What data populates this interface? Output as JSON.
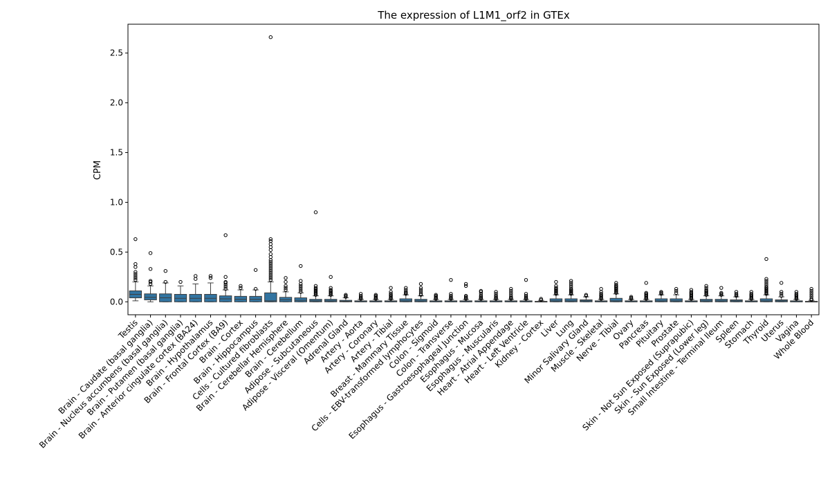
{
  "chart_data": {
    "type": "box",
    "title": "The expression of L1M1_orf2 in GTEx",
    "xlabel": "",
    "ylabel": "CPM",
    "ylim": [
      -0.13,
      2.79
    ],
    "yticks": [
      0.0,
      0.5,
      1.0,
      1.5,
      2.0,
      2.5
    ],
    "grid": false,
    "box_color": "#3274a1",
    "categories": [
      {
        "name": "Testis",
        "q1": 0.04,
        "median": 0.075,
        "q3": 0.11,
        "wlo": 0.01,
        "whi": 0.2,
        "outliers": [
          0.22,
          0.24,
          0.26,
          0.28,
          0.3,
          0.35,
          0.38,
          0.63
        ]
      },
      {
        "name": "Brain - Caudate (basal ganglia)",
        "q1": 0.02,
        "median": 0.045,
        "q3": 0.08,
        "wlo": 0.0,
        "whi": 0.16,
        "outliers": [
          0.18,
          0.2,
          0.21,
          0.33,
          0.49
        ]
      },
      {
        "name": "Brain - Nucleus accumbens (basal ganglia)",
        "q1": 0.0,
        "median": 0.04,
        "q3": 0.08,
        "wlo": 0.0,
        "whi": 0.19,
        "outliers": [
          0.2,
          0.31
        ]
      },
      {
        "name": "Brain - Putamen (basal ganglia)",
        "q1": 0.0,
        "median": 0.035,
        "q3": 0.075,
        "wlo": 0.0,
        "whi": 0.16,
        "outliers": [
          0.2
        ]
      },
      {
        "name": "Brain - Anterior cingulate cortex (BA24)",
        "q1": 0.0,
        "median": 0.035,
        "q3": 0.075,
        "wlo": 0.0,
        "whi": 0.18,
        "outliers": [
          0.23,
          0.26
        ]
      },
      {
        "name": "Brain - Hypothalamus",
        "q1": 0.0,
        "median": 0.035,
        "q3": 0.075,
        "wlo": 0.0,
        "whi": 0.19,
        "outliers": [
          0.24,
          0.26
        ]
      },
      {
        "name": "Brain - Frontal Cortex (BA9)",
        "q1": 0.0,
        "median": 0.03,
        "q3": 0.06,
        "wlo": 0.0,
        "whi": 0.12,
        "outliers": [
          0.13,
          0.15,
          0.17,
          0.19,
          0.2,
          0.25,
          0.67
        ]
      },
      {
        "name": "Brain - Cortex",
        "q1": 0.0,
        "median": 0.025,
        "q3": 0.055,
        "wlo": 0.0,
        "whi": 0.12,
        "outliers": [
          0.14,
          0.16
        ]
      },
      {
        "name": "Brain - Hippocampus",
        "q1": 0.0,
        "median": 0.025,
        "q3": 0.055,
        "wlo": 0.0,
        "whi": 0.12,
        "outliers": [
          0.13,
          0.32
        ]
      },
      {
        "name": "Cells - Cultured fibroblasts",
        "q1": 0.0,
        "median": 0.01,
        "q3": 0.09,
        "wlo": 0.0,
        "whi": 0.2,
        "outliers": [
          0.22,
          0.24,
          0.26,
          0.28,
          0.3,
          0.32,
          0.34,
          0.36,
          0.38,
          0.4,
          0.42,
          0.45,
          0.48,
          0.52,
          0.55,
          0.58,
          0.61,
          0.63,
          2.66
        ]
      },
      {
        "name": "Brain - Cerebellar Hemisphere",
        "q1": 0.0,
        "median": 0.02,
        "q3": 0.045,
        "wlo": 0.0,
        "whi": 0.1,
        "outliers": [
          0.12,
          0.14,
          0.16,
          0.2,
          0.24
        ]
      },
      {
        "name": "Brain - Cerebellum",
        "q1": 0.0,
        "median": 0.015,
        "q3": 0.04,
        "wlo": 0.0,
        "whi": 0.09,
        "outliers": [
          0.1,
          0.12,
          0.14,
          0.16,
          0.18,
          0.21,
          0.36
        ]
      },
      {
        "name": "Adipose - Subcutaneous",
        "q1": 0.0,
        "median": 0.01,
        "q3": 0.025,
        "wlo": 0.0,
        "whi": 0.06,
        "outliers": [
          0.07,
          0.08,
          0.09,
          0.1,
          0.11,
          0.12,
          0.13,
          0.14,
          0.16,
          0.9
        ]
      },
      {
        "name": "Adipose - Visceral (Omentum)",
        "q1": 0.0,
        "median": 0.01,
        "q3": 0.025,
        "wlo": 0.0,
        "whi": 0.06,
        "outliers": [
          0.07,
          0.08,
          0.09,
          0.1,
          0.11,
          0.12,
          0.14,
          0.25
        ]
      },
      {
        "name": "Adrenal Gland",
        "q1": 0.0,
        "median": 0.005,
        "q3": 0.015,
        "wlo": 0.0,
        "whi": 0.04,
        "outliers": [
          0.05,
          0.06,
          0.07
        ]
      },
      {
        "name": "Artery - Aorta",
        "q1": 0.0,
        "median": 0.0,
        "q3": 0.01,
        "wlo": 0.0,
        "whi": 0.025,
        "outliers": [
          0.03,
          0.04,
          0.05,
          0.06,
          0.08
        ]
      },
      {
        "name": "Artery - Coronary",
        "q1": 0.0,
        "median": 0.0,
        "q3": 0.01,
        "wlo": 0.0,
        "whi": 0.025,
        "outliers": [
          0.03,
          0.04,
          0.05,
          0.06,
          0.07
        ]
      },
      {
        "name": "Artery - Tibial",
        "q1": 0.0,
        "median": 0.0,
        "q3": 0.01,
        "wlo": 0.0,
        "whi": 0.025,
        "outliers": [
          0.03,
          0.04,
          0.05,
          0.06,
          0.07,
          0.08,
          0.1,
          0.14
        ]
      },
      {
        "name": "Breast - Mammary Tissue",
        "q1": 0.0,
        "median": 0.01,
        "q3": 0.03,
        "wlo": 0.0,
        "whi": 0.07,
        "outliers": [
          0.08,
          0.09,
          0.1,
          0.12,
          0.14
        ]
      },
      {
        "name": "Cells - EBV-transformed lymphocytes",
        "q1": 0.0,
        "median": 0.01,
        "q3": 0.025,
        "wlo": 0.0,
        "whi": 0.06,
        "outliers": [
          0.07,
          0.08,
          0.1,
          0.12,
          0.14,
          0.18
        ]
      },
      {
        "name": "Colon - Sigmoid",
        "q1": 0.0,
        "median": 0.0,
        "q3": 0.01,
        "wlo": 0.0,
        "whi": 0.025,
        "outliers": [
          0.03,
          0.04,
          0.05,
          0.06,
          0.07
        ]
      },
      {
        "name": "Colon - Transverse",
        "q1": 0.0,
        "median": 0.0,
        "q3": 0.01,
        "wlo": 0.0,
        "whi": 0.025,
        "outliers": [
          0.03,
          0.04,
          0.05,
          0.06,
          0.08,
          0.22
        ]
      },
      {
        "name": "Esophagus - Gastroesophageal Junction",
        "q1": 0.0,
        "median": 0.0,
        "q3": 0.01,
        "wlo": 0.0,
        "whi": 0.025,
        "outliers": [
          0.03,
          0.04,
          0.05,
          0.06,
          0.16,
          0.18
        ]
      },
      {
        "name": "Esophagus - Mucosa",
        "q1": 0.0,
        "median": 0.0,
        "q3": 0.01,
        "wlo": 0.0,
        "whi": 0.025,
        "outliers": [
          0.03,
          0.04,
          0.05,
          0.06,
          0.08,
          0.1,
          0.11
        ]
      },
      {
        "name": "Esophagus - Muscularis",
        "q1": 0.0,
        "median": 0.0,
        "q3": 0.01,
        "wlo": 0.0,
        "whi": 0.025,
        "outliers": [
          0.03,
          0.04,
          0.05,
          0.06,
          0.08,
          0.1
        ]
      },
      {
        "name": "Heart - Atrial Appendage",
        "q1": 0.0,
        "median": 0.0,
        "q3": 0.01,
        "wlo": 0.0,
        "whi": 0.025,
        "outliers": [
          0.03,
          0.04,
          0.05,
          0.07,
          0.09,
          0.11,
          0.13
        ]
      },
      {
        "name": "Heart - Left Ventricle",
        "q1": 0.0,
        "median": 0.0,
        "q3": 0.01,
        "wlo": 0.0,
        "whi": 0.025,
        "outliers": [
          0.03,
          0.04,
          0.05,
          0.06,
          0.08,
          0.22
        ]
      },
      {
        "name": "Kidney - Cortex",
        "q1": 0.0,
        "median": 0.0,
        "q3": 0.005,
        "wlo": 0.0,
        "whi": 0.015,
        "outliers": [
          0.02,
          0.03
        ]
      },
      {
        "name": "Liver",
        "q1": 0.0,
        "median": 0.01,
        "q3": 0.03,
        "wlo": 0.0,
        "whi": 0.07,
        "outliers": [
          0.08,
          0.09,
          0.1,
          0.11,
          0.12,
          0.13,
          0.14,
          0.16,
          0.2
        ]
      },
      {
        "name": "Lung",
        "q1": 0.0,
        "median": 0.01,
        "q3": 0.03,
        "wlo": 0.0,
        "whi": 0.07,
        "outliers": [
          0.08,
          0.09,
          0.1,
          0.11,
          0.12,
          0.13,
          0.15,
          0.17,
          0.19,
          0.21
        ]
      },
      {
        "name": "Minor Salivary Gland",
        "q1": 0.0,
        "median": 0.01,
        "q3": 0.02,
        "wlo": 0.0,
        "whi": 0.05,
        "outliers": [
          0.06,
          0.07
        ]
      },
      {
        "name": "Muscle - Skeletal",
        "q1": 0.0,
        "median": 0.0,
        "q3": 0.01,
        "wlo": 0.0,
        "whi": 0.025,
        "outliers": [
          0.03,
          0.04,
          0.05,
          0.06,
          0.07,
          0.08,
          0.1,
          0.13
        ]
      },
      {
        "name": "Nerve - Tibial",
        "q1": 0.0,
        "median": 0.01,
        "q3": 0.035,
        "wlo": 0.0,
        "whi": 0.08,
        "outliers": [
          0.09,
          0.1,
          0.11,
          0.12,
          0.13,
          0.14,
          0.15,
          0.16,
          0.17,
          0.19
        ]
      },
      {
        "name": "Ovary",
        "q1": 0.0,
        "median": 0.0,
        "q3": 0.01,
        "wlo": 0.0,
        "whi": 0.025,
        "outliers": [
          0.03,
          0.04,
          0.05
        ]
      },
      {
        "name": "Pancreas",
        "q1": 0.0,
        "median": 0.0,
        "q3": 0.01,
        "wlo": 0.0,
        "whi": 0.025,
        "outliers": [
          0.03,
          0.04,
          0.05,
          0.06,
          0.07,
          0.08,
          0.09,
          0.19
        ]
      },
      {
        "name": "Pituitary",
        "q1": 0.0,
        "median": 0.01,
        "q3": 0.03,
        "wlo": 0.0,
        "whi": 0.07,
        "outliers": [
          0.08,
          0.09,
          0.1
        ]
      },
      {
        "name": "Prostate",
        "q1": 0.0,
        "median": 0.01,
        "q3": 0.03,
        "wlo": 0.0,
        "whi": 0.07,
        "outliers": [
          0.09,
          0.11,
          0.13
        ]
      },
      {
        "name": "Skin - Not Sun Exposed (Suprapubic)",
        "q1": 0.0,
        "median": 0.0,
        "q3": 0.01,
        "wlo": 0.0,
        "whi": 0.025,
        "outliers": [
          0.03,
          0.04,
          0.05,
          0.06,
          0.07,
          0.08,
          0.09,
          0.1,
          0.12
        ]
      },
      {
        "name": "Skin - Sun Exposed (Lower leg)",
        "q1": 0.0,
        "median": 0.01,
        "q3": 0.025,
        "wlo": 0.0,
        "whi": 0.06,
        "outliers": [
          0.07,
          0.08,
          0.09,
          0.1,
          0.11,
          0.12,
          0.14,
          0.16
        ]
      },
      {
        "name": "Small Intestine - Terminal Ileum",
        "q1": 0.0,
        "median": 0.01,
        "q3": 0.025,
        "wlo": 0.0,
        "whi": 0.06,
        "outliers": [
          0.07,
          0.08,
          0.09,
          0.14
        ]
      },
      {
        "name": "Spleen",
        "q1": 0.0,
        "median": 0.01,
        "q3": 0.02,
        "wlo": 0.0,
        "whi": 0.05,
        "outliers": [
          0.06,
          0.07,
          0.08,
          0.1
        ]
      },
      {
        "name": "Stomach",
        "q1": 0.0,
        "median": 0.0,
        "q3": 0.01,
        "wlo": 0.0,
        "whi": 0.025,
        "outliers": [
          0.03,
          0.04,
          0.05,
          0.06,
          0.07,
          0.08,
          0.1
        ]
      },
      {
        "name": "Thyroid",
        "q1": 0.0,
        "median": 0.01,
        "q3": 0.03,
        "wlo": 0.0,
        "whi": 0.07,
        "outliers": [
          0.08,
          0.09,
          0.1,
          0.11,
          0.12,
          0.13,
          0.14,
          0.15,
          0.17,
          0.19,
          0.21,
          0.23,
          0.43
        ]
      },
      {
        "name": "Uterus",
        "q1": 0.0,
        "median": 0.01,
        "q3": 0.02,
        "wlo": 0.0,
        "whi": 0.05,
        "outliers": [
          0.06,
          0.08,
          0.1,
          0.19
        ]
      },
      {
        "name": "Vagina",
        "q1": 0.0,
        "median": 0.0,
        "q3": 0.01,
        "wlo": 0.0,
        "whi": 0.025,
        "outliers": [
          0.03,
          0.04,
          0.05,
          0.06,
          0.07,
          0.08,
          0.1
        ]
      },
      {
        "name": "Whole Blood",
        "q1": 0.0,
        "median": 0.0,
        "q3": 0.005,
        "wlo": 0.0,
        "whi": 0.015,
        "outliers": [
          0.02,
          0.03,
          0.05,
          0.07,
          0.09,
          0.11,
          0.13
        ]
      }
    ]
  }
}
